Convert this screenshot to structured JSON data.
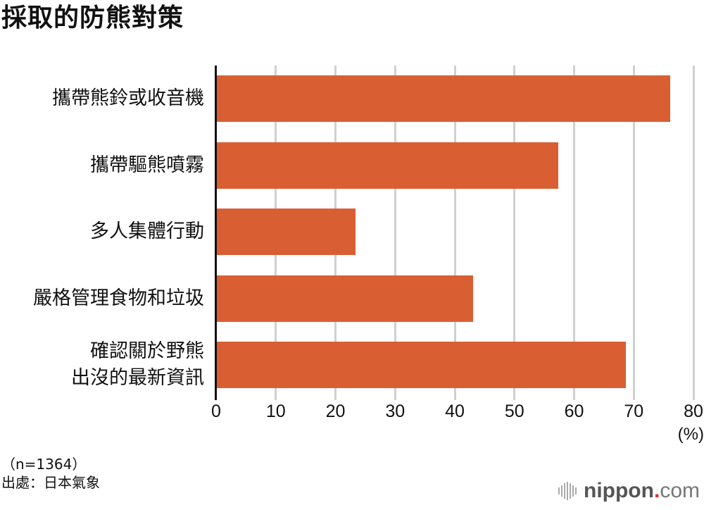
{
  "title": "採取的防熊對策",
  "chart_data": {
    "type": "bar",
    "orientation": "horizontal",
    "title": "採取的防熊對策",
    "categories": [
      "攜帶熊鈴或收音機",
      "攜帶驅熊噴霧",
      "多人集體行動",
      "嚴格管理食物和垃圾",
      "確認關於野熊\n出沒的最新資訊"
    ],
    "values": [
      76.1,
      57.3,
      23.4,
      43.1,
      68.7
    ],
    "xlabel": "(%)",
    "ylabel": "",
    "xlim": [
      0,
      80
    ],
    "xticks": [
      "0",
      "10",
      "20",
      "30",
      "40",
      "50",
      "60",
      "70",
      "80"
    ],
    "grid": true,
    "bar_color": "#d95f33",
    "legend": null
  },
  "axis": {
    "unit_label": "(%)"
  },
  "notes": {
    "sample": "（n=1364）",
    "source": "出處：日本氣象"
  },
  "brand": {
    "name_bold": "nippon",
    "dot": ".",
    "name_light": "com"
  },
  "colors": {
    "bar": "#d95f33",
    "grid": "#d0d0d0",
    "axis": "#111111",
    "brand_dot": "#e52d27"
  }
}
